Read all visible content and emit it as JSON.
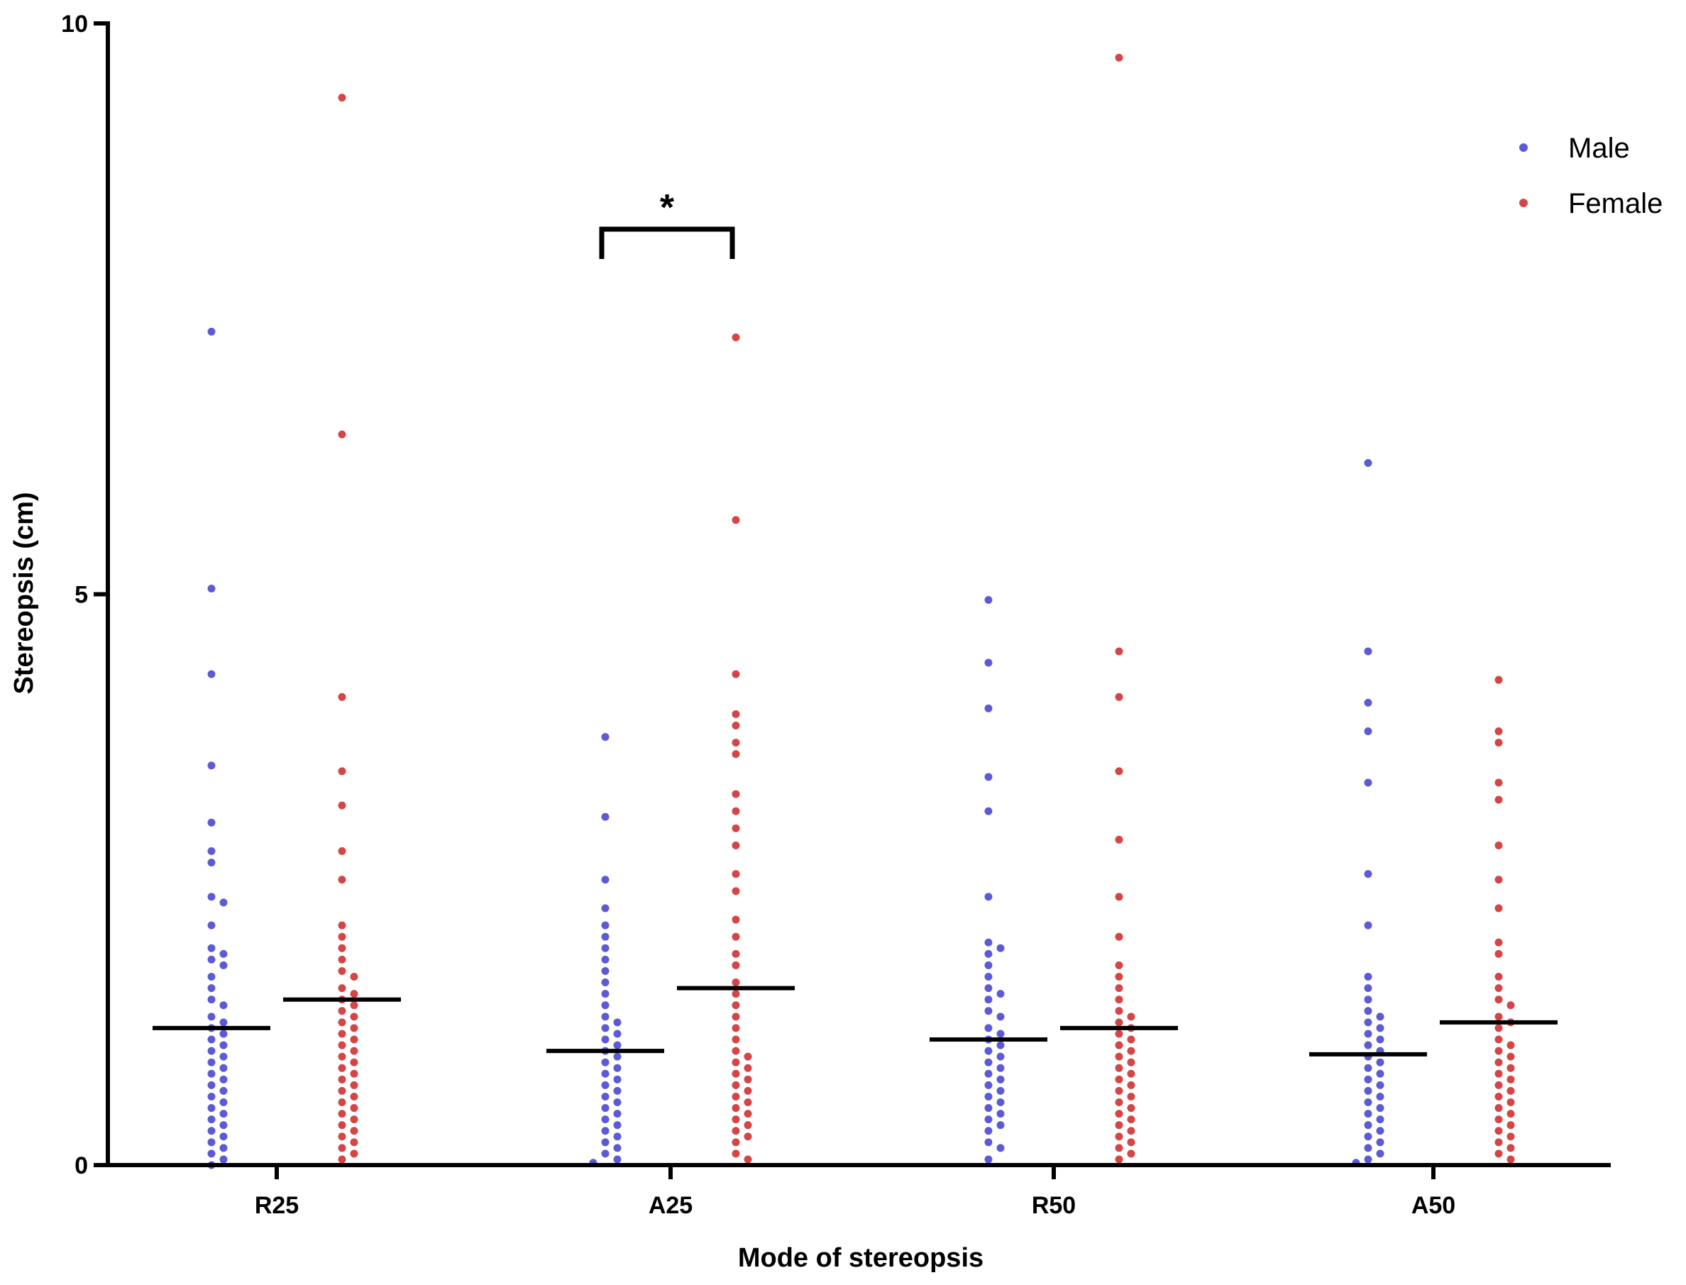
{
  "chart_data": {
    "type": "scatter",
    "subtype": "dot-plot with median lines",
    "xlabel": "Mode of stereopsis",
    "ylabel": "Stereopsis (cm)",
    "ylim": [
      0,
      10
    ],
    "yticks": [
      "0",
      "5",
      "10"
    ],
    "categories": [
      "R25",
      "A25",
      "R50",
      "A50"
    ],
    "grid": false,
    "legend": {
      "position": "top-right"
    },
    "colors": {
      "Male": "#5b5bd6",
      "Female": "#d64545",
      "median": "#000000"
    },
    "significance": [
      {
        "category": "A25",
        "label": "*"
      }
    ],
    "series": [
      {
        "name": "Male",
        "medians": [
          1.2,
          1.0,
          1.1,
          0.97
        ],
        "values": [
          [
            7.3,
            5.05,
            4.3,
            3.5,
            3.0,
            2.75,
            2.65,
            2.35,
            2.3,
            2.1,
            1.9,
            1.85,
            1.8,
            1.75,
            1.65,
            1.55,
            1.45,
            1.4,
            1.3,
            1.25,
            1.2,
            1.15,
            1.1,
            1.05,
            1.0,
            0.95,
            0.9,
            0.85,
            0.8,
            0.75,
            0.7,
            0.65,
            0.6,
            0.55,
            0.5,
            0.45,
            0.4,
            0.35,
            0.3,
            0.25,
            0.2,
            0.15,
            0.1,
            0.05,
            0.0
          ],
          [
            3.75,
            3.05,
            2.5,
            2.25,
            2.1,
            2.0,
            1.9,
            1.8,
            1.7,
            1.6,
            1.5,
            1.4,
            1.3,
            1.25,
            1.2,
            1.15,
            1.1,
            1.05,
            1.0,
            0.95,
            0.9,
            0.85,
            0.8,
            0.75,
            0.7,
            0.65,
            0.6,
            0.55,
            0.5,
            0.45,
            0.4,
            0.35,
            0.3,
            0.25,
            0.2,
            0.15,
            0.1,
            0.05,
            0.02
          ],
          [
            4.95,
            4.4,
            4.0,
            3.4,
            3.1,
            2.35,
            1.95,
            1.9,
            1.85,
            1.75,
            1.65,
            1.55,
            1.5,
            1.45,
            1.35,
            1.3,
            1.2,
            1.15,
            1.1,
            1.05,
            1.0,
            0.95,
            0.9,
            0.85,
            0.8,
            0.75,
            0.7,
            0.65,
            0.6,
            0.55,
            0.5,
            0.45,
            0.4,
            0.35,
            0.3,
            0.2,
            0.15,
            0.05
          ],
          [
            6.15,
            4.5,
            4.05,
            3.8,
            3.35,
            2.55,
            2.1,
            1.65,
            1.55,
            1.45,
            1.35,
            1.3,
            1.25,
            1.2,
            1.15,
            1.1,
            1.05,
            1.0,
            0.95,
            0.9,
            0.85,
            0.8,
            0.75,
            0.7,
            0.65,
            0.6,
            0.55,
            0.5,
            0.45,
            0.4,
            0.35,
            0.3,
            0.25,
            0.2,
            0.15,
            0.1,
            0.05,
            0.02
          ]
        ]
      },
      {
        "name": "Female",
        "medians": [
          1.45,
          1.55,
          1.2,
          1.25
        ],
        "values": [
          [
            9.35,
            6.4,
            4.1,
            3.45,
            3.15,
            2.75,
            2.5,
            2.1,
            2.0,
            1.9,
            1.8,
            1.7,
            1.65,
            1.55,
            1.5,
            1.45,
            1.4,
            1.35,
            1.3,
            1.25,
            1.2,
            1.15,
            1.1,
            1.05,
            1.0,
            0.95,
            0.9,
            0.85,
            0.8,
            0.75,
            0.7,
            0.65,
            0.6,
            0.55,
            0.5,
            0.45,
            0.4,
            0.35,
            0.3,
            0.25,
            0.2,
            0.15,
            0.1,
            0.05
          ],
          [
            7.25,
            5.65,
            4.3,
            3.95,
            3.85,
            3.7,
            3.6,
            3.25,
            3.1,
            2.95,
            2.8,
            2.55,
            2.4,
            2.15,
            2.0,
            1.85,
            1.75,
            1.6,
            1.5,
            1.4,
            1.3,
            1.2,
            1.1,
            1.0,
            0.95,
            0.9,
            0.85,
            0.8,
            0.75,
            0.7,
            0.65,
            0.6,
            0.55,
            0.5,
            0.45,
            0.4,
            0.35,
            0.3,
            0.25,
            0.2,
            0.1,
            0.05
          ],
          [
            9.7,
            4.5,
            4.1,
            3.45,
            2.85,
            2.35,
            2.0,
            1.75,
            1.65,
            1.55,
            1.45,
            1.35,
            1.3,
            1.25,
            1.2,
            1.15,
            1.1,
            1.05,
            1.0,
            0.95,
            0.9,
            0.85,
            0.8,
            0.75,
            0.7,
            0.65,
            0.6,
            0.55,
            0.5,
            0.45,
            0.4,
            0.35,
            0.3,
            0.25,
            0.2,
            0.15,
            0.1,
            0.05
          ],
          [
            4.25,
            3.8,
            3.7,
            3.35,
            3.2,
            2.8,
            2.5,
            2.25,
            1.95,
            1.85,
            1.65,
            1.55,
            1.45,
            1.4,
            1.3,
            1.25,
            1.2,
            1.1,
            1.05,
            1.0,
            0.95,
            0.9,
            0.85,
            0.8,
            0.75,
            0.7,
            0.65,
            0.6,
            0.55,
            0.5,
            0.45,
            0.4,
            0.35,
            0.3,
            0.25,
            0.2,
            0.15,
            0.1,
            0.05
          ]
        ]
      }
    ]
  }
}
